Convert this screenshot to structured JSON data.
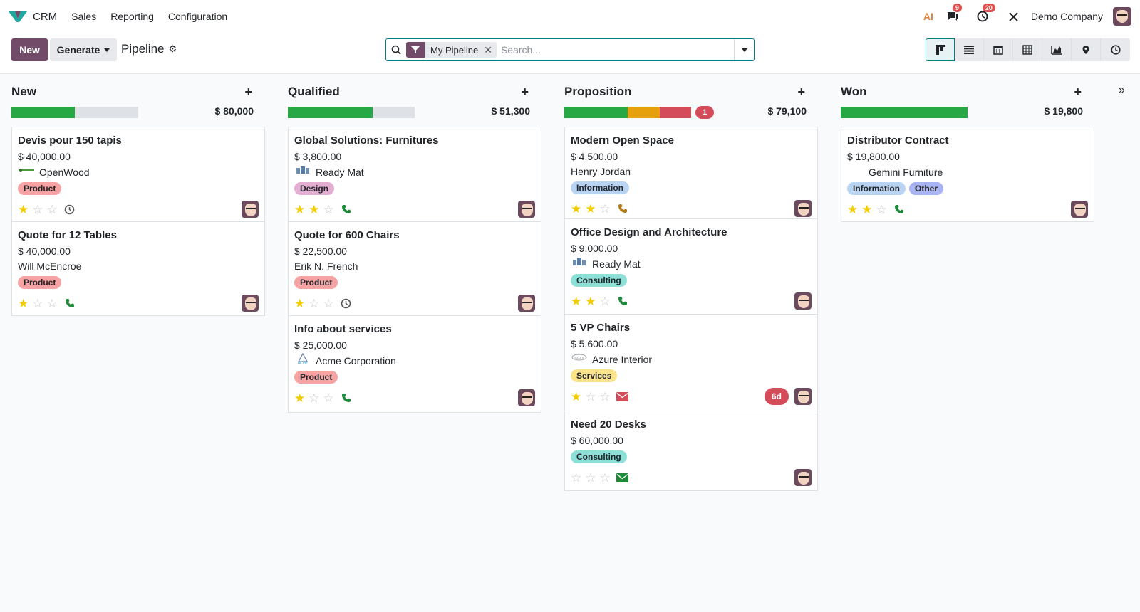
{
  "navbar": {
    "app_name": "CRM",
    "menu": [
      "Sales",
      "Reporting",
      "Configuration"
    ],
    "messages_count": "9",
    "activities_count": "20",
    "company": "Demo Company",
    "ai_label": "AI"
  },
  "control": {
    "new_label": "New",
    "generate_label": "Generate",
    "breadcrumb": "Pipeline",
    "facet_label": "My Pipeline",
    "search_placeholder": "Search..."
  },
  "colors": {
    "brand": "#714b67",
    "accent": "#017e84",
    "green": "#28a745",
    "orange": "#e6a00b",
    "red": "#d44c59"
  },
  "columns": [
    {
      "title": "New",
      "amount": "$ 80,000",
      "progress": [
        {
          "color": "#28a745",
          "fraction": 0.5
        }
      ],
      "overdue": "",
      "cards": [
        {
          "title": "Devis pour 150 tapis",
          "amount": "$ 40,000.00",
          "partner": "OpenWood",
          "partner_logo": "openwood-logo",
          "tags": [
            {
              "label": "Product",
              "bg": "#f7a3a3"
            }
          ],
          "stars": 1,
          "activity": "clock-icon",
          "activity_color": "#555",
          "days": ""
        },
        {
          "title": "Quote for 12 Tables",
          "amount": "$ 40,000.00",
          "partner": "Will McEncroe",
          "partner_logo": "",
          "tags": [
            {
              "label": "Product",
              "bg": "#f7a3a3"
            }
          ],
          "stars": 1,
          "activity": "phone-icon",
          "activity_color": "#1e8a3a",
          "days": ""
        }
      ]
    },
    {
      "title": "Qualified",
      "amount": "$ 51,300",
      "progress": [
        {
          "color": "#28a745",
          "fraction": 0.67
        }
      ],
      "overdue": "",
      "cards": [
        {
          "title": "Global Solutions: Furnitures",
          "amount": "$ 3,800.00",
          "partner": "Ready Mat",
          "partner_logo": "readymat-logo",
          "tags": [
            {
              "label": "Design",
              "bg": "#e3aed2"
            }
          ],
          "stars": 2,
          "activity": "phone-icon",
          "activity_color": "#1e8a3a",
          "days": ""
        },
        {
          "title": "Quote for 600 Chairs",
          "amount": "$ 22,500.00",
          "partner": "Erik N. French",
          "partner_logo": "",
          "tags": [
            {
              "label": "Product",
              "bg": "#f7a3a3"
            }
          ],
          "stars": 1,
          "activity": "clock-icon",
          "activity_color": "#555",
          "days": ""
        },
        {
          "title": "Info about services",
          "amount": "$ 25,000.00",
          "partner": "Acme Corporation",
          "partner_logo": "acme-logo",
          "tags": [
            {
              "label": "Product",
              "bg": "#f7a3a3"
            }
          ],
          "stars": 1,
          "activity": "phone-icon",
          "activity_color": "#1e8a3a",
          "days": ""
        }
      ]
    },
    {
      "title": "Proposition",
      "amount": "$ 79,100",
      "progress": [
        {
          "color": "#28a745",
          "fraction": 0.5
        },
        {
          "color": "#e6a00b",
          "fraction": 0.25
        },
        {
          "color": "#d44c59",
          "fraction": 0.25
        }
      ],
      "overdue": "1",
      "cards": [
        {
          "title": "Modern Open Space",
          "amount": "$ 4,500.00",
          "partner": "Henry Jordan",
          "partner_logo": "",
          "tags": [
            {
              "label": "Information",
              "bg": "#b9d4f3"
            }
          ],
          "stars": 2,
          "activity": "phone-icon",
          "activity_color": "#b07a1a",
          "days": ""
        },
        {
          "title": "Office Design and Architecture",
          "amount": "$ 9,000.00",
          "partner": "Ready Mat",
          "partner_logo": "readymat-logo",
          "tags": [
            {
              "label": "Consulting",
              "bg": "#8de0d8"
            }
          ],
          "stars": 2,
          "activity": "phone-icon",
          "activity_color": "#1e8a3a",
          "days": ""
        },
        {
          "title": "5 VP Chairs",
          "amount": "$ 5,600.00",
          "partner": "Azure Interior",
          "partner_logo": "azure-logo",
          "tags": [
            {
              "label": "Services",
              "bg": "#fbe38c"
            }
          ],
          "stars": 1,
          "activity": "envelope-icon",
          "activity_color": "#d44c59",
          "days": "6d"
        },
        {
          "title": "Need 20 Desks",
          "amount": "$ 60,000.00",
          "partner": "",
          "partner_logo": "",
          "tags": [
            {
              "label": "Consulting",
              "bg": "#8de0d8"
            }
          ],
          "stars": 0,
          "activity": "envelope-icon",
          "activity_color": "#1e8a3a",
          "days": ""
        }
      ]
    },
    {
      "title": "Won",
      "amount": "$ 19,800",
      "progress": [
        {
          "color": "#28a745",
          "fraction": 1.0
        }
      ],
      "overdue": "",
      "cards": [
        {
          "title": "Distributor Contract",
          "amount": "$ 19,800.00",
          "partner": "Gemini Furniture",
          "partner_logo": "gemini-logo",
          "tags": [
            {
              "label": "Information",
              "bg": "#b9d4f3"
            },
            {
              "label": "Other",
              "bg": "#a8b3f3"
            }
          ],
          "stars": 2,
          "activity": "phone-icon",
          "activity_color": "#1e8a3a",
          "days": ""
        }
      ]
    }
  ]
}
